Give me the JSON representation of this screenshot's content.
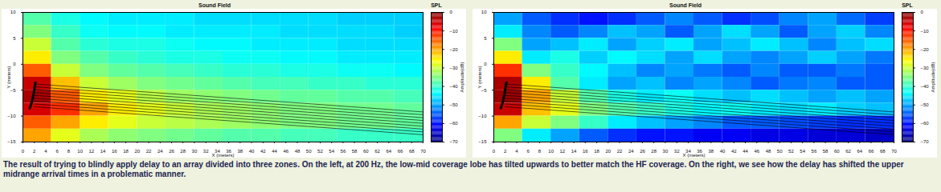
{
  "chart_data": [
    {
      "type": "heatmap",
      "title": "Sound Field",
      "x_label": "X (meters)",
      "y_label": "Y (meters)",
      "xlim": [
        0,
        70
      ],
      "xticks": [
        0,
        2,
        4,
        6,
        8,
        10,
        12,
        14,
        16,
        18,
        20,
        22,
        24,
        26,
        28,
        30,
        32,
        34,
        36,
        38,
        40,
        42,
        44,
        46,
        48,
        50,
        52,
        54,
        56,
        58,
        60,
        62,
        64,
        66,
        68,
        70
      ],
      "ylim": [
        -15,
        10
      ],
      "yticks": [
        -15,
        -10,
        -5,
        0,
        5,
        10
      ],
      "cells": {
        "x": [
          2.5,
          7.5,
          12.5,
          17.5,
          22.5,
          27.5,
          32.5,
          37.5,
          42.5,
          47.5,
          52.5,
          57.5,
          62.5,
          67.5
        ],
        "y": [
          8.75,
          6.25,
          3.75,
          1.25,
          -1.25,
          -3.75,
          -6.25,
          -8.75,
          -11.25,
          -13.75
        ],
        "values": [
          [
            -38,
            -42,
            -44,
            -45,
            -45,
            -45,
            -46,
            -46,
            -46,
            -46,
            -46,
            -47,
            -47,
            -47
          ],
          [
            -35,
            -40,
            -43,
            -44,
            -44,
            -45,
            -45,
            -45,
            -45,
            -46,
            -46,
            -46,
            -46,
            -47
          ],
          [
            -30,
            -38,
            -41,
            -42,
            -42,
            -43,
            -44,
            -44,
            -45,
            -45,
            -45,
            -46,
            -46,
            -46
          ],
          [
            -25,
            -35,
            -38,
            -40,
            -41,
            -42,
            -42,
            -43,
            -43,
            -44,
            -44,
            -45,
            -45,
            -45
          ],
          [
            -15,
            -30,
            -35,
            -37,
            -38,
            -39,
            -40,
            -41,
            -41,
            -42,
            -42,
            -43,
            -43,
            -44
          ],
          [
            -5,
            -22,
            -30,
            -33,
            -35,
            -36,
            -37,
            -38,
            -39,
            -39,
            -40,
            -40,
            -41,
            -41
          ],
          [
            -3,
            -15,
            -25,
            -28,
            -31,
            -33,
            -34,
            -35,
            -36,
            -37,
            -37,
            -38,
            -38,
            -39
          ],
          [
            -6,
            -12,
            -20,
            -25,
            -28,
            -30,
            -32,
            -33,
            -34,
            -35,
            -35,
            -36,
            -36,
            -37
          ],
          [
            -15,
            -20,
            -25,
            -28,
            -30,
            -31,
            -32,
            -33,
            -34,
            -35,
            -35,
            -36,
            -36,
            -37
          ],
          [
            -20,
            -28,
            -32,
            -34,
            -35,
            -36,
            -37,
            -38,
            -38,
            -39,
            -39,
            -40,
            -40,
            -40
          ]
        ]
      },
      "colorbar": {
        "title": "SPL",
        "label": "Amplitude(dB)",
        "range": [
          -70,
          0
        ],
        "ticks": [
          -70,
          -60,
          -50,
          -40,
          -30,
          -20,
          -10,
          0
        ]
      },
      "array": {
        "x": [
          2.2,
          1.9,
          1.6,
          1.2
        ],
        "y": [
          -3.5,
          -5.5,
          -7.2,
          -8.5
        ]
      },
      "rays": [
        {
          "x": [
            2,
            70
          ],
          "y": [
            -3.8,
            -9.2
          ]
        },
        {
          "x": [
            2,
            70
          ],
          "y": [
            -4.35,
            -9.75
          ]
        },
        {
          "x": [
            2,
            70
          ],
          "y": [
            -4.9,
            -10.3
          ]
        },
        {
          "x": [
            2,
            70
          ],
          "y": [
            -5.45,
            -10.85
          ]
        },
        {
          "x": [
            2,
            70
          ],
          "y": [
            -6.0,
            -11.4
          ]
        },
        {
          "x": [
            2,
            70
          ],
          "y": [
            -6.55,
            -11.95
          ]
        },
        {
          "x": [
            2,
            70
          ],
          "y": [
            -7.1,
            -12.5
          ]
        },
        {
          "x": [
            2,
            70
          ],
          "y": [
            -7.65,
            -13.05
          ]
        },
        {
          "x": [
            2,
            70
          ],
          "y": [
            -8.2,
            -13.6
          ]
        }
      ]
    },
    {
      "type": "heatmap",
      "title": "Sound Field",
      "x_label": "X (meters)",
      "y_label": "Y (meters)",
      "xlim": [
        0,
        70
      ],
      "xticks": [
        0,
        2,
        4,
        6,
        8,
        10,
        12,
        14,
        16,
        18,
        20,
        22,
        24,
        26,
        28,
        30,
        32,
        34,
        36,
        38,
        40,
        42,
        44,
        46,
        48,
        50,
        52,
        54,
        56,
        58,
        60,
        62,
        64,
        66,
        68,
        70
      ],
      "ylim": [
        -15,
        10
      ],
      "yticks": [
        -15,
        -10,
        -5,
        0,
        5,
        10
      ],
      "cells": {
        "x": [
          2.5,
          7.5,
          12.5,
          17.5,
          22.5,
          27.5,
          32.5,
          37.5,
          42.5,
          47.5,
          52.5,
          57.5,
          62.5,
          67.5
        ],
        "y": [
          8.75,
          6.25,
          3.75,
          1.25,
          -1.25,
          -3.75,
          -6.25,
          -8.75,
          -11.25,
          -13.75
        ],
        "values": [
          [
            -50,
            -55,
            -58,
            -60,
            -58,
            -55,
            -52,
            -55,
            -58,
            -56,
            -52,
            -50,
            -54,
            -57
          ],
          [
            -45,
            -52,
            -55,
            -52,
            -48,
            -50,
            -55,
            -50,
            -46,
            -50,
            -55,
            -50,
            -47,
            -52
          ],
          [
            -35,
            -50,
            -48,
            -45,
            -50,
            -47,
            -45,
            -50,
            -48,
            -45,
            -48,
            -52,
            -48,
            -46
          ],
          [
            -25,
            -45,
            -42,
            -47,
            -44,
            -46,
            -50,
            -46,
            -50,
            -52,
            -50,
            -47,
            -50,
            -53
          ],
          [
            -12,
            -35,
            -40,
            -44,
            -48,
            -52,
            -50,
            -53,
            -55,
            -52,
            -55,
            -55,
            -53,
            -55
          ],
          [
            -3,
            -25,
            -38,
            -45,
            -50,
            -48,
            -52,
            -50,
            -52,
            -55,
            -53,
            -52,
            -55,
            -55
          ],
          [
            -2,
            -20,
            -30,
            -38,
            -42,
            -45,
            -43,
            -46,
            -48,
            -46,
            -48,
            -50,
            -48,
            -50
          ],
          [
            -5,
            -22,
            -28,
            -35,
            -38,
            -40,
            -42,
            -44,
            -43,
            -45,
            -46,
            -45,
            -47,
            -48
          ],
          [
            -20,
            -30,
            -35,
            -40,
            -45,
            -48,
            -50,
            -52,
            -55,
            -55,
            -56,
            -57,
            -58,
            -58
          ],
          [
            -35,
            -45,
            -50,
            -55,
            -58,
            -60,
            -60,
            -62,
            -62,
            -63,
            -63,
            -64,
            -64,
            -65
          ]
        ]
      },
      "colorbar": {
        "title": "SPL",
        "label": "Amplitude(dB)",
        "range": [
          -70,
          0
        ],
        "ticks": [
          -70,
          -60,
          -50,
          -40,
          -30,
          -20,
          -10,
          0
        ]
      },
      "array": {
        "x": [
          2.2,
          1.9,
          1.6,
          1.2
        ],
        "y": [
          -3.5,
          -5.5,
          -7.2,
          -8.5
        ]
      },
      "rays": [
        {
          "x": [
            2,
            70
          ],
          "y": [
            -3.8,
            -9.2
          ]
        },
        {
          "x": [
            2,
            70
          ],
          "y": [
            -4.35,
            -9.75
          ]
        },
        {
          "x": [
            2,
            70
          ],
          "y": [
            -4.9,
            -10.3
          ]
        },
        {
          "x": [
            2,
            70
          ],
          "y": [
            -5.45,
            -10.85
          ]
        },
        {
          "x": [
            2,
            70
          ],
          "y": [
            -6.0,
            -11.4
          ]
        },
        {
          "x": [
            2,
            70
          ],
          "y": [
            -6.55,
            -11.95
          ]
        },
        {
          "x": [
            2,
            70
          ],
          "y": [
            -7.1,
            -12.5
          ]
        },
        {
          "x": [
            2,
            70
          ],
          "y": [
            -7.65,
            -13.05
          ]
        },
        {
          "x": [
            2,
            70
          ],
          "y": [
            -8.2,
            -13.6
          ]
        }
      ]
    }
  ],
  "caption": "The result of trying to blindly apply delay to an array divided into three zones. On the left, at 200 Hz, the low-mid coverage lobe has tilted upwards to better match the HF coverage. On the right, we see how the delay has shifted the upper midrange arrival times in a problematic manner."
}
